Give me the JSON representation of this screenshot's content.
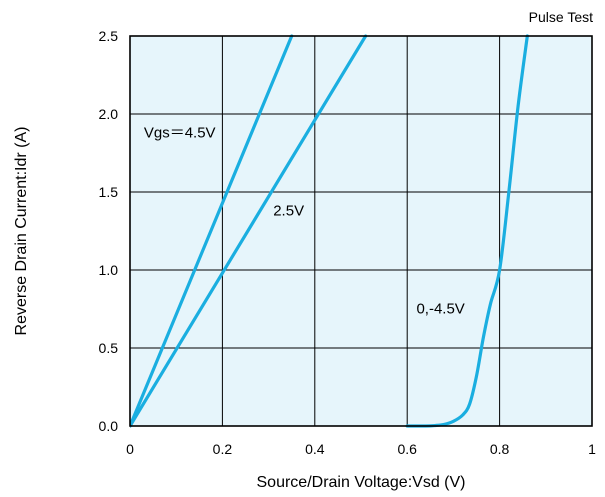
{
  "chart_data": {
    "type": "line",
    "note": "Pulse Test",
    "xlabel": "Source/Drain Voltage:Vsd (V)",
    "ylabel": "Reverse Drain Current:Idr (A)",
    "xlim": [
      0,
      1
    ],
    "ylim": [
      0,
      2.5
    ],
    "xticks": [
      0,
      0.2,
      0.4,
      0.6,
      0.8,
      1
    ],
    "xtick_labels": [
      "0",
      "0.2",
      "0.4",
      "0.6",
      "0.8",
      "1"
    ],
    "yticks": [
      0,
      0.5,
      1,
      1.5,
      2,
      2.5
    ],
    "ytick_labels": [
      "0.0",
      "0.5",
      "1.0",
      "1.5",
      "2.0",
      "2.5"
    ],
    "grid": true,
    "background_color": "#e6f5fb",
    "line_color": "#1aaee0",
    "series": [
      {
        "name": "Vgs=4.5V",
        "x": [
          0,
          0.35
        ],
        "y": [
          0,
          2.5
        ]
      },
      {
        "name": "2.5V",
        "x": [
          0,
          0.51
        ],
        "y": [
          0,
          2.5
        ]
      },
      {
        "name": "0,-4.5V",
        "x": [
          0.6,
          0.64,
          0.66,
          0.68,
          0.7,
          0.72,
          0.735,
          0.75,
          0.765,
          0.78,
          0.8,
          0.82,
          0.84,
          0.86
        ],
        "y": [
          0.0,
          0.0,
          0.003,
          0.01,
          0.03,
          0.07,
          0.14,
          0.32,
          0.57,
          0.78,
          1.0,
          1.5,
          2.05,
          2.5
        ]
      }
    ],
    "annotations": [
      {
        "text": "Vgs＝4.5V",
        "x": 0.03,
        "y": 1.85
      },
      {
        "text": "2.5V",
        "x": 0.31,
        "y": 1.35
      },
      {
        "text": "0,-4.5V",
        "x": 0.62,
        "y": 0.72
      }
    ]
  }
}
